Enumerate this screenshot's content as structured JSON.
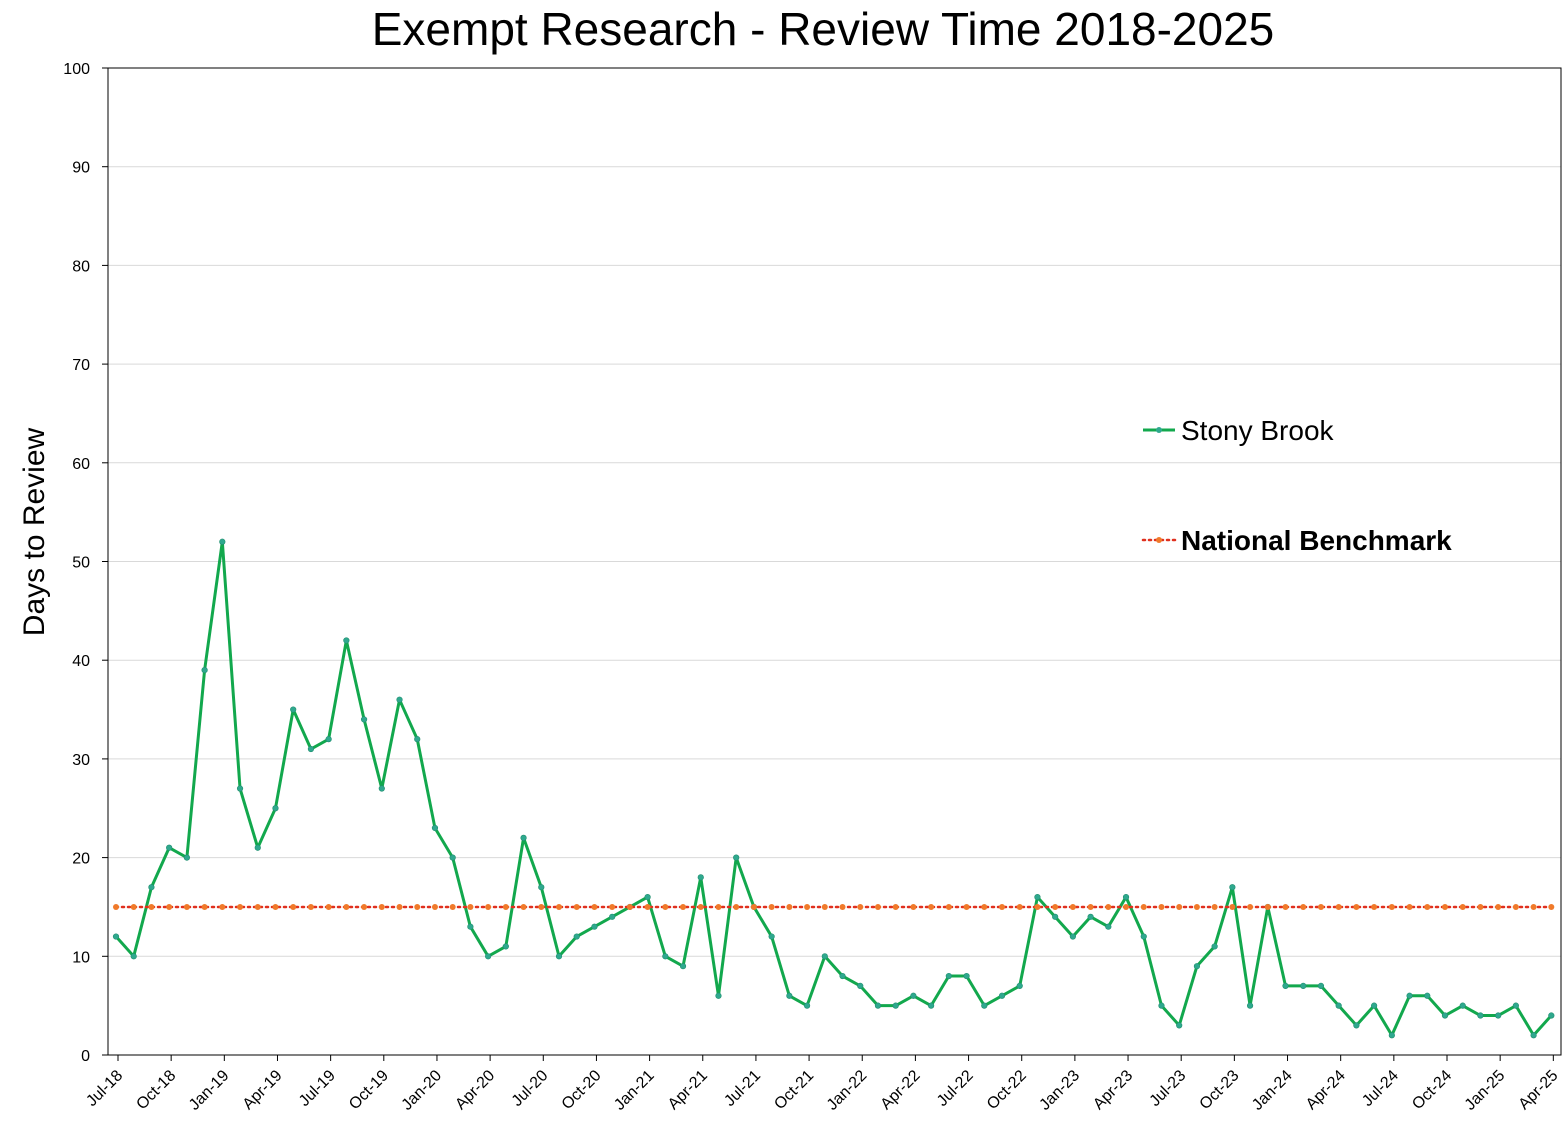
{
  "chart_data": {
    "type": "line",
    "title": "Exempt Research - Review Time 2018-2025",
    "xlabel": "",
    "ylabel": "Days to Review",
    "ylim": [
      0,
      100
    ],
    "yticks": [
      0,
      10,
      20,
      30,
      40,
      50,
      60,
      70,
      80,
      90,
      100
    ],
    "grid": true,
    "legend_position": "right",
    "x_tick_labels": [
      "Jul-18",
      "Oct-18",
      "Jan-19",
      "Apr-19",
      "Jul-19",
      "Oct-19",
      "Jan-20",
      "Apr-20",
      "Jul-20",
      "Oct-20",
      "Jan-21",
      "Apr-21",
      "Jul-21",
      "Oct-21",
      "Jan-22",
      "Apr-22",
      "Jul-22",
      "Oct-22",
      "Jan-23",
      "Apr-23",
      "Jul-23",
      "Oct-23",
      "Jan-24",
      "Apr-24",
      "Jul-24",
      "Oct-24",
      "Jan-25",
      "Apr-25"
    ],
    "x": [
      "Jul-18",
      "Aug-18",
      "Sep-18",
      "Oct-18",
      "Nov-18",
      "Dec-18",
      "Jan-19",
      "Feb-19",
      "Mar-19",
      "Apr-19",
      "May-19",
      "Jun-19",
      "Jul-19",
      "Aug-19",
      "Sep-19",
      "Oct-19",
      "Nov-19",
      "Dec-19",
      "Jan-20",
      "Feb-20",
      "Mar-20",
      "Apr-20",
      "May-20",
      "Jun-20",
      "Jul-20",
      "Aug-20",
      "Sep-20",
      "Oct-20",
      "Nov-20",
      "Dec-20",
      "Jan-21",
      "Feb-21",
      "Mar-21",
      "Apr-21",
      "May-21",
      "Jun-21",
      "Jul-21",
      "Aug-21",
      "Sep-21",
      "Oct-21",
      "Nov-21",
      "Dec-21",
      "Jan-22",
      "Feb-22",
      "Mar-22",
      "Apr-22",
      "May-22",
      "Jun-22",
      "Jul-22",
      "Aug-22",
      "Sep-22",
      "Oct-22",
      "Nov-22",
      "Dec-22",
      "Jan-23",
      "Feb-23",
      "Mar-23",
      "Apr-23",
      "May-23",
      "Jun-23",
      "Jul-23",
      "Aug-23",
      "Sep-23",
      "Oct-23",
      "Nov-23",
      "Dec-23",
      "Jan-24",
      "Feb-24",
      "Mar-24",
      "Apr-24",
      "May-24",
      "Jun-24",
      "Jul-24",
      "Aug-24",
      "Sep-24",
      "Oct-24",
      "Nov-24",
      "Dec-24",
      "Jan-25",
      "Feb-25",
      "Mar-25",
      "Apr-25"
    ],
    "series": [
      {
        "name": "Stony Brook",
        "color": "#12a84d",
        "marker_color": "#2fa88e",
        "style": "solid",
        "values": [
          12,
          10,
          17,
          21,
          20,
          39,
          52,
          27,
          21,
          25,
          35,
          31,
          32,
          42,
          34,
          27,
          36,
          32,
          23,
          20,
          13,
          10,
          11,
          22,
          17,
          10,
          12,
          13,
          14,
          15,
          16,
          10,
          9,
          18,
          6,
          20,
          15,
          12,
          6,
          5,
          10,
          8,
          7,
          5,
          5,
          6,
          5,
          8,
          8,
          5,
          6,
          7,
          16,
          14,
          12,
          14,
          13,
          16,
          12,
          5,
          3,
          9,
          11,
          17,
          5,
          15,
          7,
          7,
          7,
          5,
          3,
          5,
          2,
          6,
          6,
          4,
          5,
          4,
          4,
          5,
          2,
          4
        ]
      },
      {
        "name": "National Benchmark",
        "color": "#e0301e",
        "marker_color": "#f07a2a",
        "style": "dotted",
        "bold_label": true,
        "values": [
          15,
          15,
          15,
          15,
          15,
          15,
          15,
          15,
          15,
          15,
          15,
          15,
          15,
          15,
          15,
          15,
          15,
          15,
          15,
          15,
          15,
          15,
          15,
          15,
          15,
          15,
          15,
          15,
          15,
          15,
          15,
          15,
          15,
          15,
          15,
          15,
          15,
          15,
          15,
          15,
          15,
          15,
          15,
          15,
          15,
          15,
          15,
          15,
          15,
          15,
          15,
          15,
          15,
          15,
          15,
          15,
          15,
          15,
          15,
          15,
          15,
          15,
          15,
          15,
          15,
          15,
          15,
          15,
          15,
          15,
          15,
          15,
          15,
          15,
          15,
          15,
          15,
          15,
          15,
          15,
          15,
          15
        ]
      }
    ]
  }
}
